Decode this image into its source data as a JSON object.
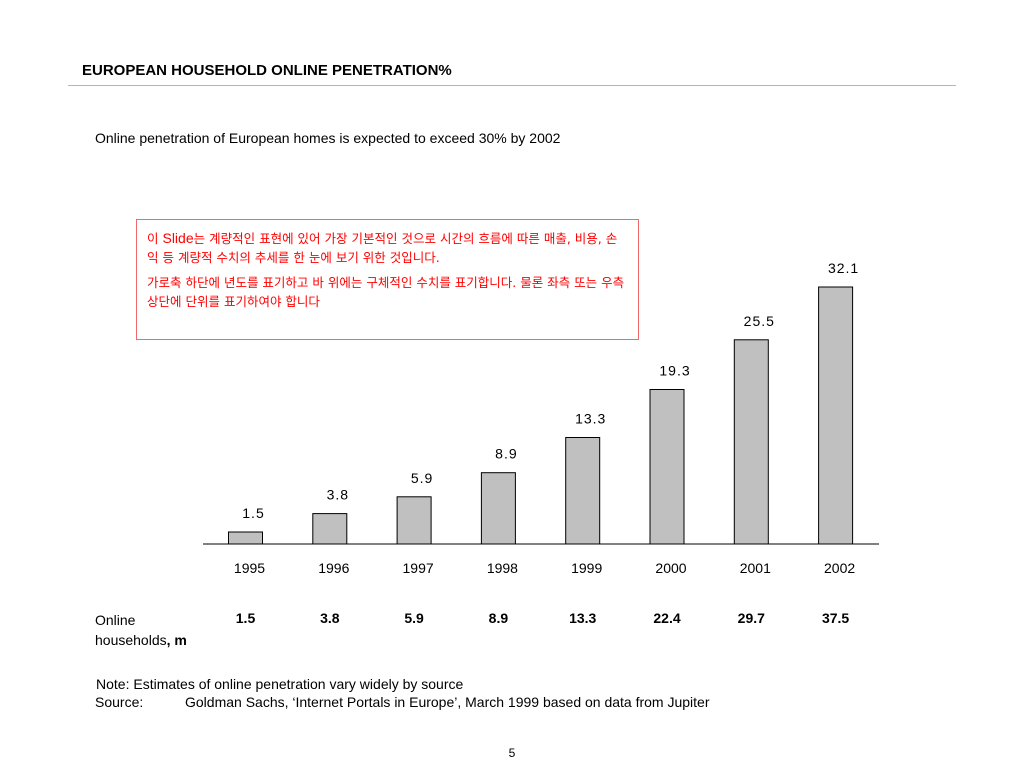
{
  "slide": {
    "title": "EUROPEAN HOUSEHOLD ONLINE PENETRATION%",
    "subtitle": "Online penetration of European homes is expected to exceed 30% by 2002",
    "page_number": "5"
  },
  "annotation": {
    "line1_prefix": "이 ",
    "line1_word": "Slide",
    "line1_rest": "는 계량적인 표현에 있어 가장 기본적인 것으로 시간의 흐름에 따른 매출, 비용, 손익 등 계량적 수치의 추세를 한 눈에 보기 위한 것입니다.",
    "line2": "가로축 하단에 년도를 표기하고 바 위에는 구체적인 수치를 표기합니다. 물론 좌측 또는 우측 상단에 단위를 표기하여야 합니다"
  },
  "households_row": {
    "label_part1": "Online",
    "label_part2": "households",
    "label_unit": ", m",
    "values": [
      "1.5",
      "3.8",
      "5.9",
      "8.9",
      "13.3",
      "22.4",
      "29.7",
      "37.5"
    ]
  },
  "footer": {
    "note": "Note: Estimates of online penetration vary widely by source",
    "source_label": "Source:",
    "source_text": "Goldman Sachs, ‘Internet Portals in Europe’, March 1999 based on data from Jupiter"
  },
  "colors": {
    "bar_fill": "#c0c0c0",
    "bar_stroke": "#000000",
    "annotation_text": "#ff0000",
    "annotation_border": "#f06a6a"
  },
  "chart_data": {
    "type": "bar",
    "title": "",
    "xlabel": "",
    "ylabel": "",
    "categories": [
      "1995",
      "1996",
      "1997",
      "1998",
      "1999",
      "2000",
      "2001",
      "2002"
    ],
    "values": [
      1.5,
      3.8,
      5.9,
      8.9,
      13.3,
      19.3,
      25.5,
      32.1
    ],
    "value_labels": [
      "1.5",
      "3.8",
      "5.9",
      "8.9",
      "13.3",
      "19.3",
      "25.5",
      "32.1"
    ],
    "ylim": [
      0,
      32.1
    ],
    "grid": false,
    "legend": "none"
  }
}
